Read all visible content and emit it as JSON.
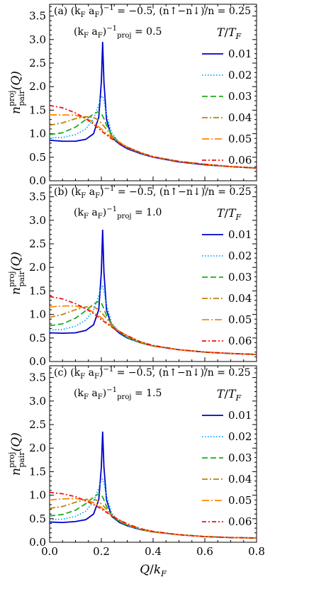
{
  "chart_data": [
    {
      "type": "line",
      "annotation_line1": "(a)  (k_F a_F)^−1 = −0.5,  (n↑−n↓)/n = 0.25",
      "annotation_line2": "(k_F a_F)^−1_proj = 0.5",
      "ylabel": "n^proj_pair(Q)",
      "xlabel": "",
      "xlim": [
        0,
        0.8
      ],
      "ylim": [
        0,
        3.75
      ],
      "x_ticks": [
        "",
        "",
        "",
        "",
        ""
      ],
      "y_ticks": [
        "0.0",
        "0.5",
        "1.0",
        "1.5",
        "2.0",
        "2.5",
        "3.0",
        "3.5"
      ],
      "legend_title": "T/T_F",
      "legend_position": "right",
      "series": [
        {
          "name": "0.01",
          "color": "#0000cc",
          "dash": "solid",
          "x": [
            0,
            0.05,
            0.1,
            0.14,
            0.17,
            0.19,
            0.2,
            0.205,
            0.21,
            0.22,
            0.24,
            0.27,
            0.3,
            0.35,
            0.4,
            0.5,
            0.6,
            0.7,
            0.8
          ],
          "y": [
            0.86,
            0.84,
            0.84,
            0.88,
            1.0,
            1.35,
            2.1,
            2.95,
            2.1,
            1.3,
            0.92,
            0.78,
            0.68,
            0.58,
            0.5,
            0.4,
            0.34,
            0.3,
            0.27
          ]
        },
        {
          "name": "0.02",
          "color": "#00aaff",
          "dash": "dot",
          "x": [
            0,
            0.05,
            0.1,
            0.14,
            0.17,
            0.19,
            0.2,
            0.205,
            0.21,
            0.22,
            0.24,
            0.27,
            0.3,
            0.35,
            0.4,
            0.5,
            0.6,
            0.7,
            0.8
          ],
          "y": [
            0.91,
            0.92,
            0.98,
            1.1,
            1.32,
            1.62,
            1.78,
            1.8,
            1.7,
            1.4,
            1.02,
            0.8,
            0.7,
            0.59,
            0.51,
            0.41,
            0.35,
            0.3,
            0.27
          ]
        },
        {
          "name": "0.03",
          "color": "#22aa22",
          "dash": "8,4",
          "x": [
            0,
            0.05,
            0.1,
            0.14,
            0.17,
            0.19,
            0.2,
            0.21,
            0.22,
            0.24,
            0.27,
            0.3,
            0.35,
            0.4,
            0.5,
            0.6,
            0.7,
            0.8
          ],
          "y": [
            0.98,
            1.02,
            1.14,
            1.3,
            1.42,
            1.47,
            1.43,
            1.32,
            1.18,
            0.98,
            0.8,
            0.7,
            0.59,
            0.51,
            0.41,
            0.35,
            0.3,
            0.27
          ]
        },
        {
          "name": "0.04",
          "color": "#b8860b",
          "dash": "8,3,2,3",
          "x": [
            0,
            0.05,
            0.1,
            0.14,
            0.17,
            0.19,
            0.21,
            0.23,
            0.25,
            0.27,
            0.3,
            0.35,
            0.4,
            0.5,
            0.6,
            0.7,
            0.8
          ],
          "y": [
            1.18,
            1.23,
            1.32,
            1.36,
            1.35,
            1.28,
            1.16,
            1.02,
            0.9,
            0.82,
            0.71,
            0.6,
            0.51,
            0.41,
            0.35,
            0.3,
            0.27
          ]
        },
        {
          "name": "0.05",
          "color": "#ff8800",
          "dash": "10,3,2,3",
          "x": [
            0,
            0.05,
            0.1,
            0.14,
            0.17,
            0.2,
            0.23,
            0.26,
            0.3,
            0.35,
            0.4,
            0.5,
            0.6,
            0.7,
            0.8
          ],
          "y": [
            1.4,
            1.4,
            1.39,
            1.33,
            1.24,
            1.1,
            0.96,
            0.84,
            0.72,
            0.6,
            0.51,
            0.41,
            0.35,
            0.3,
            0.27
          ]
        },
        {
          "name": "0.06",
          "color": "#ee1111",
          "dash": "6,3,2,3",
          "x": [
            0,
            0.05,
            0.1,
            0.14,
            0.17,
            0.2,
            0.23,
            0.26,
            0.3,
            0.35,
            0.4,
            0.5,
            0.6,
            0.7,
            0.8
          ],
          "y": [
            1.6,
            1.55,
            1.44,
            1.32,
            1.2,
            1.06,
            0.93,
            0.82,
            0.71,
            0.6,
            0.51,
            0.41,
            0.35,
            0.3,
            0.27
          ]
        }
      ]
    },
    {
      "type": "line",
      "annotation_line1": "(b)  (k_F a_F)^−1 = −0.5,  (n↑−n↓)/n = 0.25",
      "annotation_line2": "(k_F a_F)^−1_proj = 1.0",
      "ylabel": "n^proj_pair(Q)",
      "xlabel": "",
      "xlim": [
        0,
        0.8
      ],
      "ylim": [
        0,
        3.75
      ],
      "x_ticks": [
        "",
        "",
        "",
        "",
        ""
      ],
      "y_ticks": [
        "0.0",
        "0.5",
        "1.0",
        "1.5",
        "2.0",
        "2.5",
        "3.0",
        "3.5"
      ],
      "legend_title": "T/T_F",
      "legend_position": "right",
      "series": [
        {
          "name": "0.01",
          "color": "#0000cc",
          "dash": "solid",
          "x": [
            0,
            0.05,
            0.1,
            0.14,
            0.17,
            0.19,
            0.2,
            0.205,
            0.21,
            0.22,
            0.24,
            0.27,
            0.3,
            0.35,
            0.4,
            0.5,
            0.6,
            0.7,
            0.8
          ],
          "y": [
            0.61,
            0.6,
            0.61,
            0.66,
            0.78,
            1.1,
            1.9,
            2.8,
            1.9,
            1.1,
            0.75,
            0.6,
            0.5,
            0.4,
            0.33,
            0.25,
            0.2,
            0.17,
            0.15
          ]
        },
        {
          "name": "0.02",
          "color": "#00aaff",
          "dash": "dot",
          "x": [
            0,
            0.05,
            0.1,
            0.14,
            0.17,
            0.19,
            0.2,
            0.205,
            0.21,
            0.22,
            0.24,
            0.27,
            0.3,
            0.35,
            0.4,
            0.5,
            0.6,
            0.7,
            0.8
          ],
          "y": [
            0.67,
            0.68,
            0.75,
            0.88,
            1.1,
            1.4,
            1.58,
            1.6,
            1.5,
            1.2,
            0.82,
            0.62,
            0.51,
            0.4,
            0.33,
            0.25,
            0.2,
            0.17,
            0.15
          ]
        },
        {
          "name": "0.03",
          "color": "#22aa22",
          "dash": "8,4",
          "x": [
            0,
            0.05,
            0.1,
            0.14,
            0.17,
            0.19,
            0.2,
            0.21,
            0.22,
            0.24,
            0.27,
            0.3,
            0.35,
            0.4,
            0.5,
            0.6,
            0.7,
            0.8
          ],
          "y": [
            0.76,
            0.8,
            0.92,
            1.08,
            1.22,
            1.28,
            1.25,
            1.12,
            0.98,
            0.78,
            0.62,
            0.51,
            0.4,
            0.33,
            0.25,
            0.2,
            0.17,
            0.15
          ]
        },
        {
          "name": "0.04",
          "color": "#b8860b",
          "dash": "8,3,2,3",
          "x": [
            0,
            0.05,
            0.1,
            0.14,
            0.17,
            0.19,
            0.21,
            0.23,
            0.25,
            0.27,
            0.3,
            0.35,
            0.4,
            0.5,
            0.6,
            0.7,
            0.8
          ],
          "y": [
            0.94,
            1.0,
            1.1,
            1.16,
            1.16,
            1.1,
            0.98,
            0.85,
            0.73,
            0.64,
            0.53,
            0.41,
            0.33,
            0.25,
            0.2,
            0.17,
            0.15
          ]
        },
        {
          "name": "0.05",
          "color": "#ff8800",
          "dash": "10,3,2,3",
          "x": [
            0,
            0.05,
            0.1,
            0.14,
            0.17,
            0.2,
            0.23,
            0.26,
            0.3,
            0.35,
            0.4,
            0.5,
            0.6,
            0.7,
            0.8
          ],
          "y": [
            1.16,
            1.18,
            1.18,
            1.13,
            1.05,
            0.93,
            0.79,
            0.67,
            0.55,
            0.42,
            0.34,
            0.25,
            0.2,
            0.17,
            0.15
          ]
        },
        {
          "name": "0.06",
          "color": "#ee1111",
          "dash": "6,3,2,3",
          "x": [
            0,
            0.05,
            0.1,
            0.14,
            0.17,
            0.2,
            0.23,
            0.26,
            0.3,
            0.35,
            0.4,
            0.5,
            0.6,
            0.7,
            0.8
          ],
          "y": [
            1.38,
            1.33,
            1.23,
            1.12,
            1.02,
            0.89,
            0.77,
            0.66,
            0.55,
            0.42,
            0.34,
            0.25,
            0.2,
            0.17,
            0.15
          ]
        }
      ]
    },
    {
      "type": "line",
      "annotation_line1": "(c)  (k_F a_F)^−1 = −0.5,  (n↑−n↓)/n = 0.25",
      "annotation_line2": "(k_F a_F)^−1_proj = 1.5",
      "ylabel": "n^proj_pair(Q)",
      "xlabel": "Q/k_F",
      "xlim": [
        0,
        0.8
      ],
      "ylim": [
        0,
        3.75
      ],
      "x_ticks": [
        "0.0",
        "0.2",
        "0.4",
        "0.6",
        "0.8"
      ],
      "y_ticks": [
        "0.0",
        "0.5",
        "1.0",
        "1.5",
        "2.0",
        "2.5",
        "3.0",
        "3.5"
      ],
      "legend_title": "T/T_F",
      "legend_position": "right",
      "series": [
        {
          "name": "0.01",
          "color": "#0000cc",
          "dash": "solid",
          "x": [
            0,
            0.05,
            0.1,
            0.14,
            0.17,
            0.19,
            0.2,
            0.205,
            0.21,
            0.22,
            0.24,
            0.27,
            0.3,
            0.35,
            0.4,
            0.5,
            0.6,
            0.7,
            0.8
          ],
          "y": [
            0.43,
            0.42,
            0.44,
            0.48,
            0.6,
            0.9,
            1.6,
            2.35,
            1.6,
            0.9,
            0.55,
            0.42,
            0.35,
            0.27,
            0.22,
            0.16,
            0.12,
            0.1,
            0.09
          ]
        },
        {
          "name": "0.02",
          "color": "#00aaff",
          "dash": "dot",
          "x": [
            0,
            0.05,
            0.1,
            0.14,
            0.17,
            0.19,
            0.2,
            0.205,
            0.21,
            0.22,
            0.24,
            0.27,
            0.3,
            0.35,
            0.4,
            0.5,
            0.6,
            0.7,
            0.8
          ],
          "y": [
            0.48,
            0.49,
            0.55,
            0.66,
            0.86,
            1.15,
            1.32,
            1.34,
            1.25,
            0.98,
            0.62,
            0.44,
            0.36,
            0.27,
            0.22,
            0.16,
            0.12,
            0.1,
            0.09
          ]
        },
        {
          "name": "0.03",
          "color": "#22aa22",
          "dash": "8,4",
          "x": [
            0,
            0.05,
            0.1,
            0.14,
            0.17,
            0.19,
            0.2,
            0.21,
            0.22,
            0.24,
            0.27,
            0.3,
            0.35,
            0.4,
            0.5,
            0.6,
            0.7,
            0.8
          ],
          "y": [
            0.56,
            0.59,
            0.68,
            0.82,
            0.96,
            1.03,
            1.02,
            0.9,
            0.76,
            0.56,
            0.44,
            0.36,
            0.27,
            0.22,
            0.16,
            0.12,
            0.1,
            0.09
          ]
        },
        {
          "name": "0.04",
          "color": "#b8860b",
          "dash": "8,3,2,3",
          "x": [
            0,
            0.05,
            0.1,
            0.14,
            0.17,
            0.19,
            0.21,
            0.23,
            0.25,
            0.27,
            0.3,
            0.35,
            0.4,
            0.5,
            0.6,
            0.7,
            0.8
          ],
          "y": [
            0.72,
            0.76,
            0.85,
            0.91,
            0.92,
            0.87,
            0.76,
            0.64,
            0.53,
            0.45,
            0.37,
            0.28,
            0.22,
            0.16,
            0.12,
            0.1,
            0.09
          ]
        },
        {
          "name": "0.05",
          "color": "#ff8800",
          "dash": "10,3,2,3",
          "x": [
            0,
            0.05,
            0.1,
            0.14,
            0.17,
            0.2,
            0.23,
            0.26,
            0.3,
            0.35,
            0.4,
            0.5,
            0.6,
            0.7,
            0.8
          ],
          "y": [
            0.9,
            0.92,
            0.93,
            0.9,
            0.84,
            0.74,
            0.61,
            0.5,
            0.39,
            0.29,
            0.23,
            0.16,
            0.12,
            0.1,
            0.09
          ]
        },
        {
          "name": "0.06",
          "color": "#ee1111",
          "dash": "6,3,2,3",
          "x": [
            0,
            0.05,
            0.1,
            0.14,
            0.17,
            0.2,
            0.23,
            0.26,
            0.3,
            0.35,
            0.4,
            0.5,
            0.6,
            0.7,
            0.8
          ],
          "y": [
            1.06,
            1.03,
            0.97,
            0.88,
            0.8,
            0.71,
            0.6,
            0.5,
            0.39,
            0.29,
            0.23,
            0.16,
            0.12,
            0.1,
            0.09
          ]
        }
      ]
    }
  ]
}
